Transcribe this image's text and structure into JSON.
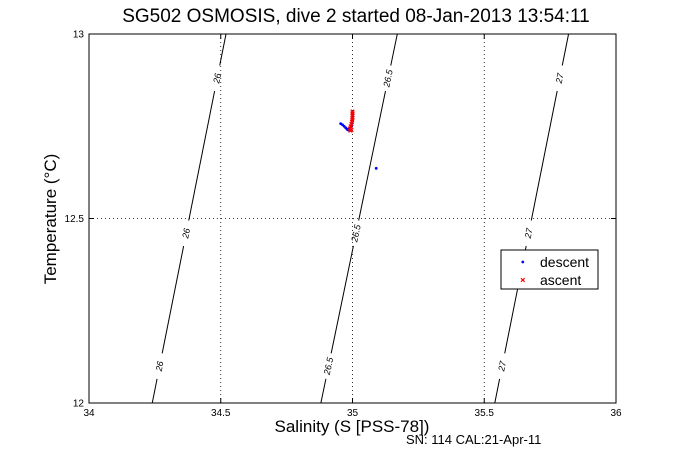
{
  "chart_data": {
    "type": "scatter",
    "title": "SG502 OSMOSIS, dive 2 started 08-Jan-2013 13:54:11",
    "xlabel": "Salinity (S [PSS-78])",
    "ylabel": "Temperature (°C)",
    "xlim": [
      34,
      36
    ],
    "ylim": [
      12,
      13
    ],
    "xticks": [
      "34",
      "34.5",
      "35",
      "35.5",
      "36"
    ],
    "yticks": [
      "12",
      "12.5",
      "13"
    ],
    "grid": true,
    "legend_position": "right",
    "footnote": "SN: 114  CAL:21-Apr-11",
    "density_contours": [
      {
        "label": "26",
        "x": [
          34.24,
          34.52
        ],
        "y": [
          12,
          13
        ]
      },
      {
        "label": "26.5",
        "x": [
          34.88,
          35.17
        ],
        "y": [
          12,
          13
        ]
      },
      {
        "label": "27",
        "x": [
          35.54,
          35.82
        ],
        "y": [
          12,
          13
        ]
      }
    ],
    "series": [
      {
        "name": "descent",
        "color": "#0000ff",
        "marker": "dot",
        "points": [
          [
            34.955,
            12.757
          ],
          [
            34.962,
            12.754
          ],
          [
            34.968,
            12.75
          ],
          [
            34.974,
            12.746
          ],
          [
            34.979,
            12.742
          ],
          [
            34.984,
            12.74
          ],
          [
            34.988,
            12.743
          ],
          [
            34.992,
            12.747
          ],
          [
            34.996,
            12.752
          ],
          [
            34.998,
            12.758
          ],
          [
            35.0,
            12.764
          ],
          [
            35.0,
            12.77
          ],
          [
            35.0,
            12.777
          ],
          [
            35.0,
            12.782
          ],
          [
            35.09,
            12.636
          ]
        ]
      },
      {
        "name": "ascent",
        "color": "#ff0000",
        "marker": "x",
        "points": [
          [
            34.99,
            12.744
          ],
          [
            34.993,
            12.75
          ],
          [
            34.996,
            12.756
          ],
          [
            34.998,
            12.762
          ],
          [
            34.999,
            12.768
          ],
          [
            35.0,
            12.773
          ],
          [
            35.0,
            12.779
          ],
          [
            35.0,
            12.785
          ],
          [
            35.0,
            12.79
          ],
          [
            34.996,
            12.74
          ],
          [
            34.992,
            12.738
          ]
        ]
      }
    ]
  }
}
